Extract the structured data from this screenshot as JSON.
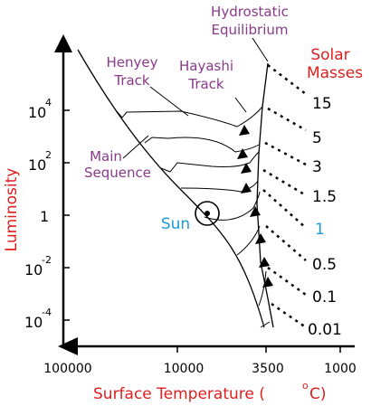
{
  "labels": {
    "hydrostatic_1": "Hydrostatic",
    "hydrostatic_2": "Equilibrium",
    "henyey_1": "Henyey",
    "henyey_2": "Track",
    "hayashi_1": "Hayashi",
    "hayashi_2": "Track",
    "main_seq_1": "Main",
    "main_seq_2": "Sequence",
    "sun": "Sun",
    "solar_1": "Solar",
    "solar_2": "Masses"
  },
  "masses": [
    "15",
    "5",
    "3",
    "1.5",
    "1",
    "0.5",
    "0.1",
    "0.01"
  ],
  "axes": {
    "y_title": "Luminosity",
    "x_title": "Surface Temperature (",
    "x_title_sup": "o",
    "x_title_unit": "C)",
    "x_ticks": [
      "100000",
      "10000",
      "3500",
      "1000"
    ],
    "y_ticks": [
      {
        "base": "10",
        "exp": "4"
      },
      {
        "base": "10",
        "exp": "2"
      },
      {
        "base": "1",
        "exp": ""
      },
      {
        "base": "10",
        "exp": "-2"
      },
      {
        "base": "10",
        "exp": "-4"
      }
    ]
  },
  "colors": {
    "purple": "#8a3a8a",
    "red": "#e01e1e",
    "blue": "#1a9ad6"
  }
}
